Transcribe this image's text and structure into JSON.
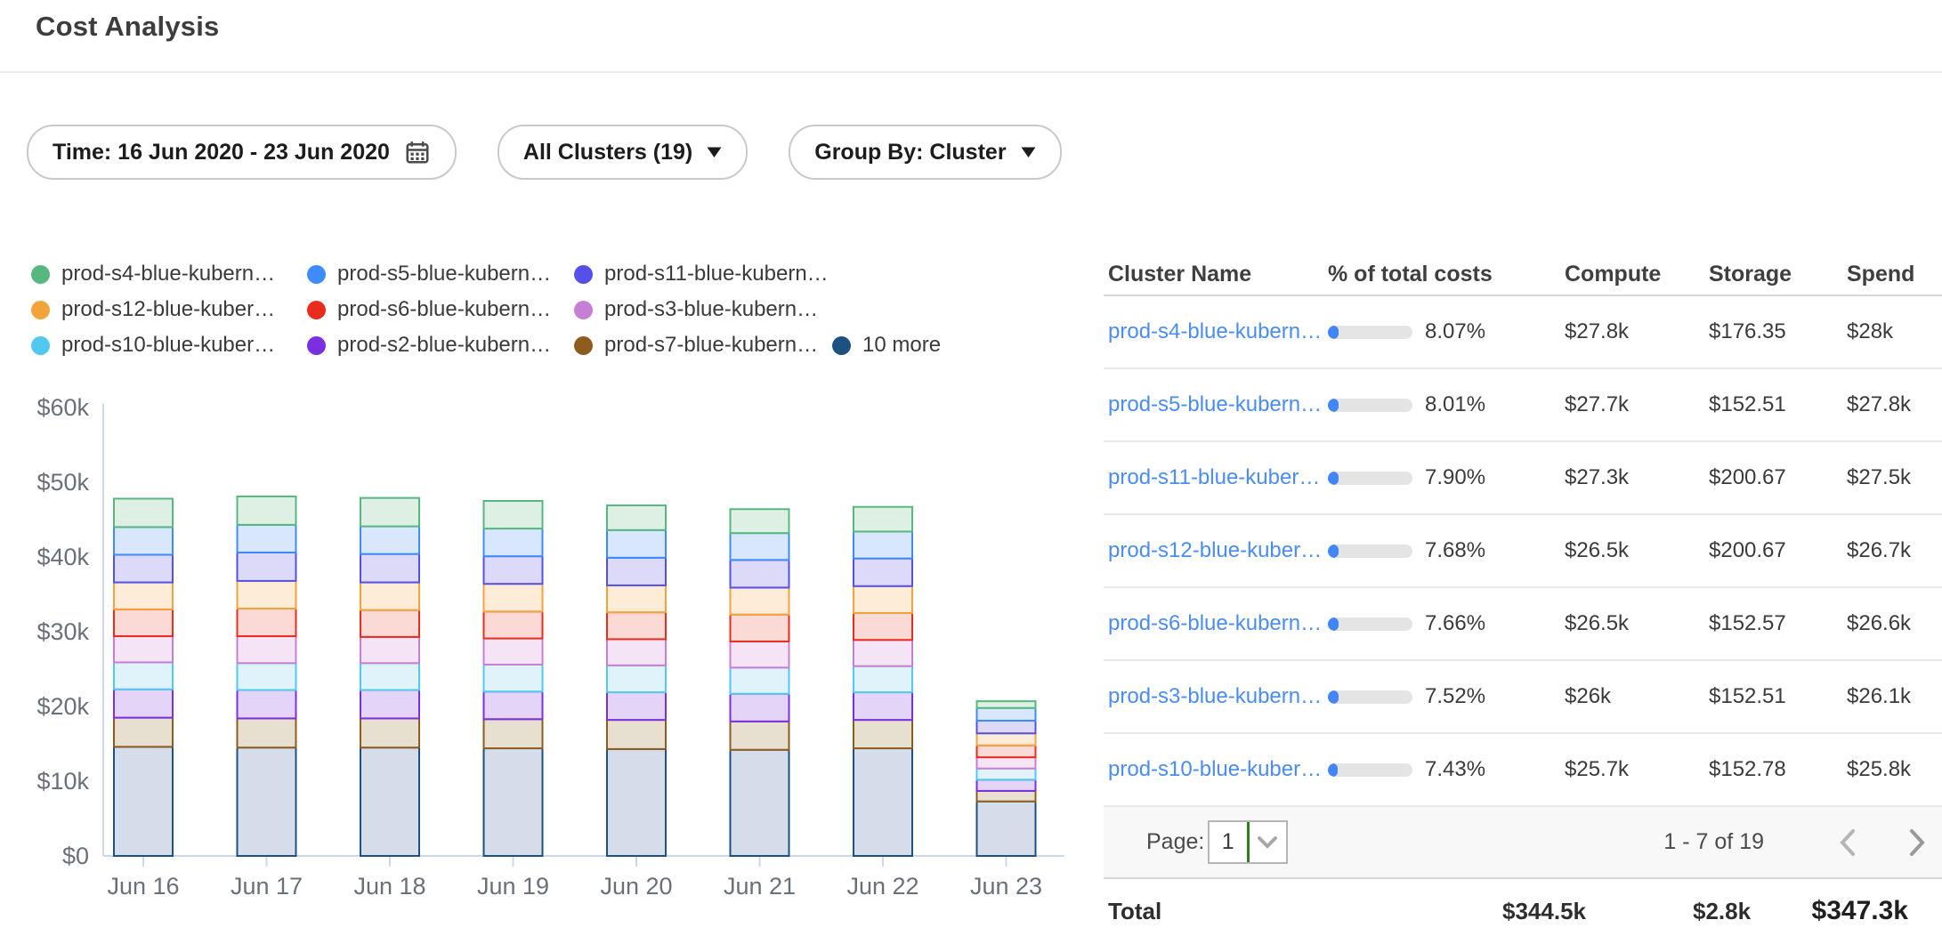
{
  "header": {
    "title": "Cost Analysis"
  },
  "filters": {
    "time": {
      "label": "Time: 16 Jun 2020 - 23 Jun 2020",
      "icon": "calendar-icon"
    },
    "clusters": {
      "label": "All Clusters (19)",
      "icon": "chevron-down-icon"
    },
    "group_by": {
      "label": "Group By: Cluster",
      "icon": "chevron-down-icon"
    }
  },
  "legend": {
    "rows": [
      [
        {
          "label": "prod-s4-blue-kubern…",
          "color": "#57b87f"
        },
        {
          "label": "prod-s5-blue-kubern…",
          "color": "#3d8bfd"
        },
        {
          "label": "prod-s11-blue-kubern…",
          "color": "#5450e8"
        }
      ],
      [
        {
          "label": "prod-s12-blue-kuber…",
          "color": "#f2a33c"
        },
        {
          "label": "prod-s6-blue-kubern…",
          "color": "#ea2c1e"
        },
        {
          "label": "prod-s3-blue-kubern…",
          "color": "#c77fd6"
        }
      ],
      [
        {
          "label": "prod-s10-blue-kuber…",
          "color": "#50c8ef"
        },
        {
          "label": "prod-s2-blue-kubern…",
          "color": "#7a2fe0"
        },
        {
          "label": "prod-s7-blue-kubern…",
          "color": "#8e5c1e"
        },
        {
          "label": "10 more",
          "color": "#1d5182"
        }
      ]
    ]
  },
  "chart_data": {
    "type": "bar",
    "stacked": true,
    "stack_order": "bottom-to-top",
    "unit": "USD thousands per day",
    "categories": [
      "Jun 16",
      "Jun 17",
      "Jun 18",
      "Jun 19",
      "Jun 20",
      "Jun 21",
      "Jun 22",
      "Jun 23"
    ],
    "ylim": [
      0,
      60
    ],
    "yticks": [
      {
        "label": "$0",
        "value": 0
      },
      {
        "label": "$10k",
        "value": 10
      },
      {
        "label": "$20k",
        "value": 20
      },
      {
        "label": "$30k",
        "value": 30
      },
      {
        "label": "$40k",
        "value": 40
      },
      {
        "label": "$50k",
        "value": 50
      },
      {
        "label": "$60k",
        "value": 60
      }
    ],
    "series": [
      {
        "name": "10 more",
        "color": "#1d5182",
        "fill": "#d4dde9",
        "values": [
          14.6,
          14.5,
          14.5,
          14.4,
          14.3,
          14.2,
          14.4,
          7.3
        ]
      },
      {
        "name": "prod-s7-blue-kubern…",
        "color": "#8e5c1e",
        "fill": "#e7e0d1",
        "values": [
          3.9,
          3.9,
          3.9,
          3.9,
          3.9,
          3.8,
          3.8,
          1.4
        ]
      },
      {
        "name": "prod-s2-blue-kubern…",
        "color": "#7a2fe0",
        "fill": "#e4d5f8",
        "values": [
          3.8,
          3.8,
          3.8,
          3.7,
          3.7,
          3.7,
          3.7,
          1.5
        ]
      },
      {
        "name": "prod-s10-blue-kuber…",
        "color": "#50c8ef",
        "fill": "#e0f3fb",
        "values": [
          3.6,
          3.6,
          3.6,
          3.6,
          3.6,
          3.5,
          3.5,
          1.5
        ]
      },
      {
        "name": "prod-s3-blue-kubern…",
        "color": "#c77fd6",
        "fill": "#f4e4f6",
        "values": [
          3.5,
          3.6,
          3.5,
          3.5,
          3.5,
          3.5,
          3.5,
          1.5
        ]
      },
      {
        "name": "prod-s6-blue-kubern…",
        "color": "#ea2c1e",
        "fill": "#fbdad6",
        "values": [
          3.6,
          3.7,
          3.6,
          3.6,
          3.6,
          3.6,
          3.6,
          1.6
        ]
      },
      {
        "name": "prod-s12-blue-kuber…",
        "color": "#f2a33c",
        "fill": "#fdecd8",
        "values": [
          3.6,
          3.7,
          3.7,
          3.7,
          3.6,
          3.6,
          3.6,
          1.6
        ]
      },
      {
        "name": "prod-s11-blue-kubern…",
        "color": "#5450e8",
        "fill": "#dcdaf8",
        "values": [
          3.7,
          3.8,
          3.8,
          3.7,
          3.7,
          3.7,
          3.7,
          1.7
        ]
      },
      {
        "name": "prod-s5-blue-kubern…",
        "color": "#3d8bfd",
        "fill": "#d8e7fc",
        "values": [
          3.7,
          3.7,
          3.7,
          3.7,
          3.7,
          3.6,
          3.6,
          1.7
        ]
      },
      {
        "name": "prod-s4-blue-kubern…",
        "color": "#57b87f",
        "fill": "#def0e4",
        "values": [
          3.8,
          3.8,
          3.8,
          3.7,
          3.3,
          3.2,
          3.3,
          0.9
        ]
      }
    ]
  },
  "table": {
    "columns": [
      "Cluster Name",
      "% of total costs",
      "Compute",
      "Storage",
      "Spend"
    ],
    "rows": [
      {
        "name": "prod-s4-blue-kubern…",
        "pct_label": "8.07%",
        "pct_value": 8.07,
        "compute": "$27.8k",
        "storage": "$176.35",
        "spend": "$28k"
      },
      {
        "name": "prod-s5-blue-kubern…",
        "pct_label": "8.01%",
        "pct_value": 8.01,
        "compute": "$27.7k",
        "storage": "$152.51",
        "spend": "$27.8k"
      },
      {
        "name": "prod-s11-blue-kuber…",
        "pct_label": "7.90%",
        "pct_value": 7.9,
        "compute": "$27.3k",
        "storage": "$200.67",
        "spend": "$27.5k"
      },
      {
        "name": "prod-s12-blue-kuber…",
        "pct_label": "7.68%",
        "pct_value": 7.68,
        "compute": "$26.5k",
        "storage": "$200.67",
        "spend": "$26.7k"
      },
      {
        "name": "prod-s6-blue-kubern…",
        "pct_label": "7.66%",
        "pct_value": 7.66,
        "compute": "$26.5k",
        "storage": "$152.57",
        "spend": "$26.6k"
      },
      {
        "name": "prod-s3-blue-kubern…",
        "pct_label": "7.52%",
        "pct_value": 7.52,
        "compute": "$26k",
        "storage": "$152.51",
        "spend": "$26.1k"
      },
      {
        "name": "prod-s10-blue-kuber…",
        "pct_label": "7.43%",
        "pct_value": 7.43,
        "compute": "$25.7k",
        "storage": "$152.78",
        "spend": "$25.8k"
      }
    ],
    "pagination": {
      "page_label": "Page:",
      "page_value": "1",
      "range_label": "1 - 7 of 19"
    },
    "total": {
      "label": "Total",
      "compute": "$344.5k",
      "storage": "$2.8k",
      "spend": "$347.3k"
    },
    "progress_color": "#4285f4"
  }
}
